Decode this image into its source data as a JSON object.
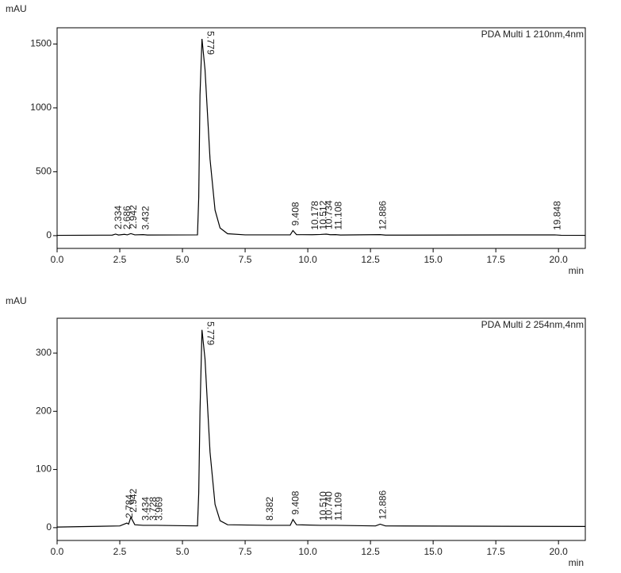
{
  "chart_data": [
    {
      "type": "line",
      "ylabel": "mAU",
      "xlabel": "min",
      "annotation": "PDA Multi 1 210nm,4nm",
      "color": "#000000",
      "xlim": [
        0,
        21.07
      ],
      "ylim": [
        -100,
        1627
      ],
      "xticks": [
        {
          "value": 0,
          "label": "0.0"
        },
        2.5,
        {
          "value": 5,
          "label": "5.0"
        },
        7.5,
        {
          "value": 10,
          "label": "10.0"
        },
        12.5,
        {
          "value": 15,
          "label": "15.0"
        },
        17.5,
        {
          "value": 20,
          "label": "20.0"
        }
      ],
      "yticks": [
        0,
        500,
        1000,
        1500
      ],
      "x": [
        0,
        2.2,
        2.334,
        2.45,
        2.686,
        2.8,
        2.942,
        3.1,
        3.432,
        3.6,
        5.6,
        5.65,
        5.7,
        5.779,
        5.9,
        6.1,
        6.3,
        6.5,
        6.8,
        7.5,
        9.3,
        9.408,
        9.55,
        10.178,
        10.512,
        10.734,
        10.9,
        11.108,
        11.3,
        12.886,
        13.1,
        19.848,
        20.1,
        21.07
      ],
      "values": [
        2,
        4,
        12,
        5,
        10,
        6,
        16,
        6,
        8,
        5,
        6,
        300,
        1100,
        1540,
        1300,
        600,
        200,
        60,
        15,
        6,
        6,
        40,
        8,
        7,
        9,
        12,
        7,
        8,
        5,
        8,
        4,
        6,
        3,
        2
      ],
      "peaks": [
        2.334,
        2.686,
        2.942,
        3.432,
        5.779,
        9.408,
        10.178,
        10.512,
        10.734,
        11.108,
        12.886,
        19.848
      ]
    },
    {
      "type": "line",
      "ylabel": "mAU",
      "xlabel": "min",
      "annotation": "PDA Multi 2 254nm,4nm",
      "color": "#000000",
      "xlim": [
        0,
        21.07
      ],
      "ylim": [
        -22,
        360
      ],
      "xticks": [
        {
          "value": 0,
          "label": "0.0"
        },
        2.5,
        {
          "value": 5,
          "label": "5.0"
        },
        7.5,
        {
          "value": 10,
          "label": "10.0"
        },
        12.5,
        {
          "value": 15,
          "label": "15.0"
        },
        17.5,
        {
          "value": 20,
          "label": "20.0"
        }
      ],
      "yticks": [
        0,
        100,
        200,
        300
      ],
      "x": [
        0,
        2.5,
        2.784,
        2.85,
        2.942,
        3.1,
        3.434,
        3.728,
        3.969,
        5.6,
        5.65,
        5.7,
        5.779,
        5.9,
        6.1,
        6.3,
        6.5,
        6.8,
        8.382,
        9.3,
        9.408,
        9.55,
        10.51,
        10.74,
        11.109,
        12.7,
        12.886,
        13.1,
        21.07
      ],
      "values": [
        1,
        3,
        8,
        6,
        18,
        5,
        4,
        4,
        4,
        3,
        60,
        200,
        340,
        290,
        130,
        40,
        12,
        5,
        4,
        4,
        14,
        5,
        4,
        4,
        4,
        3,
        6,
        3,
        2
      ],
      "peaks": [
        2.784,
        2.942,
        3.434,
        3.728,
        3.969,
        5.779,
        8.382,
        9.408,
        {
          "value": 10.51,
          "label": "10.510"
        },
        {
          "value": 10.74,
          "label": "10.740"
        },
        11.109,
        12.886
      ]
    }
  ]
}
